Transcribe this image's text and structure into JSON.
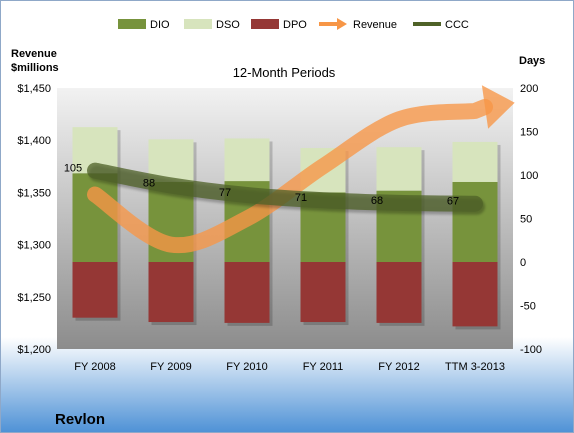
{
  "company": "Revlon",
  "chart_data": {
    "type": "bar",
    "title": "12-Month Periods",
    "left_axis_label": [
      "Revenue",
      "$millions"
    ],
    "right_axis_label": "Days",
    "categories": [
      "FY 2008",
      "FY 2009",
      "FY 2010",
      "FY 2011",
      "FY 2012",
      "TTM 3-2013"
    ],
    "left_axis": {
      "min": 1200,
      "max": 1450,
      "ticks": [
        "$1,200",
        "$1,250",
        "$1,300",
        "$1,350",
        "$1,400",
        "$1,450"
      ]
    },
    "right_axis": {
      "min": -100,
      "max": 200,
      "ticks": [
        "-100",
        "-50",
        "0",
        "50",
        "100",
        "150",
        "200"
      ]
    },
    "stacked": true,
    "series": [
      {
        "name": "DIO",
        "axis": "right",
        "values": [
          102,
          92,
          93,
          80,
          82,
          92
        ],
        "color": "#77933c"
      },
      {
        "name": "DSO",
        "axis": "right",
        "values": [
          53,
          49,
          49,
          51,
          50,
          46
        ],
        "color": "#d7e4bd"
      },
      {
        "name": "DPO",
        "axis": "right",
        "values": [
          -64,
          -69,
          -70,
          -69,
          -70,
          -74
        ],
        "color": "#953735"
      },
      {
        "name": "Revenue",
        "type": "line-arrow",
        "axis": "left",
        "values": [
          1348,
          1300,
          1325,
          1375,
          1420,
          1428
        ],
        "color": "#f79646"
      },
      {
        "name": "CCC",
        "type": "line",
        "axis": "right",
        "values": [
          105,
          88,
          77,
          71,
          68,
          67
        ],
        "color": "#4f6228"
      }
    ],
    "data_labels": [
      "105",
      "88",
      "77",
      "71",
      "68",
      "67"
    ],
    "legend_position": "top"
  }
}
